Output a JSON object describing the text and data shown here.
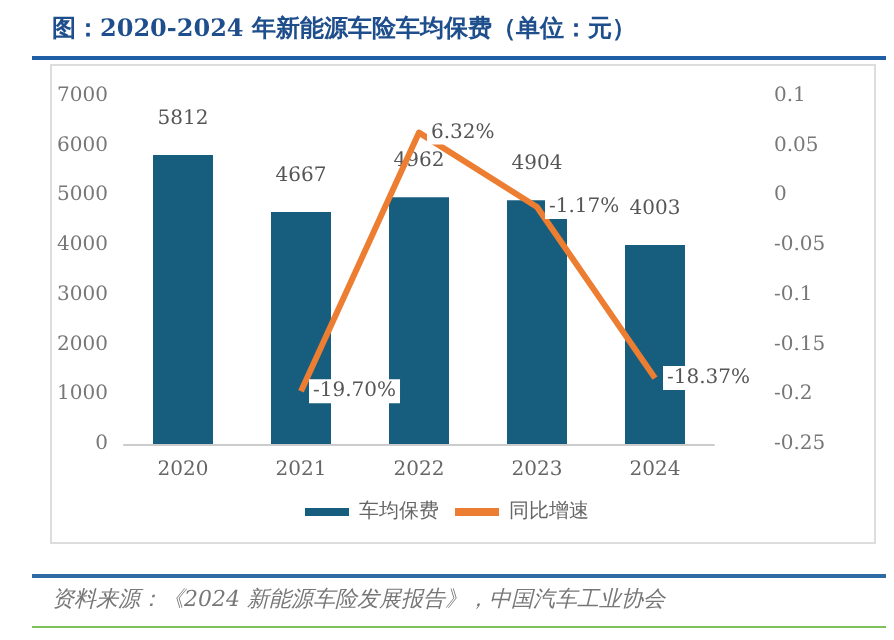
{
  "chart_data": {
    "type": "bar",
    "title": "图：2020-2024 年新能源车险车均保费（单位：元）",
    "categories": [
      "2020",
      "2021",
      "2022",
      "2023",
      "2024"
    ],
    "series": [
      {
        "name": "车均保费",
        "color": "#175e7e",
        "values": [
          5812,
          4667,
          4962,
          4904,
          4003
        ],
        "value_labels": [
          "5812",
          "4667",
          "4962",
          "4904",
          "4003"
        ]
      },
      {
        "name": "同比增速",
        "type": "line",
        "axis": "y2",
        "color": "#ed7d31",
        "values": [
          null,
          -0.197,
          0.0632,
          -0.0117,
          -0.1837
        ],
        "value_labels": [
          null,
          "-19.70%",
          "6.32%",
          "-1.17%",
          "-18.37%"
        ]
      }
    ],
    "ylim": [
      0,
      7000
    ],
    "yticks": [
      0,
      1000,
      2000,
      3000,
      4000,
      5000,
      6000,
      7000
    ],
    "y2lim": [
      -0.25,
      0.1
    ],
    "y2ticks": [
      -0.25,
      -0.2,
      -0.15,
      -0.1,
      -0.05,
      0,
      0.05,
      0.1
    ],
    "grid": false,
    "legend": "bottom",
    "marker": "none",
    "annotations": [
      "资料来源：《2024 新能源车险发展报告》，中国汽车工业协会"
    ]
  }
}
